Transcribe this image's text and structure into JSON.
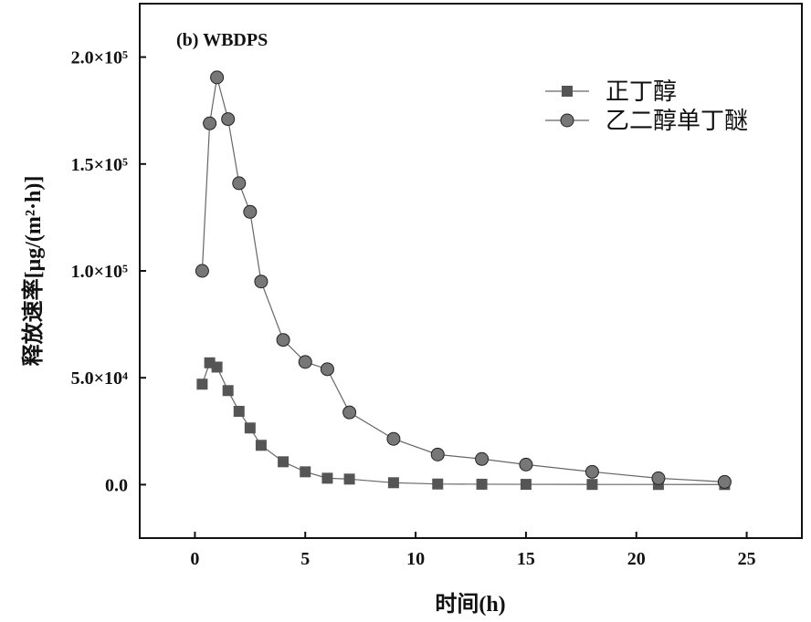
{
  "chart_data": {
    "type": "line",
    "title": "(b) WBDPS",
    "xlabel": "时间(h)",
    "ylabel": "释放速率[μg/(m²·h)]",
    "xlim": [
      -2.5,
      27.5
    ],
    "ylim": [
      -25000,
      225000
    ],
    "xticks": [
      0,
      5,
      10,
      15,
      20,
      25
    ],
    "xtick_labels": [
      "0",
      "5",
      "10",
      "15",
      "20",
      "25"
    ],
    "yticks": [
      0,
      50000,
      100000,
      150000,
      200000
    ],
    "ytick_labels": [
      "0.0",
      "5.0×10⁴",
      "1.0×10⁵",
      "1.5×10⁵",
      "2.0×10⁵"
    ],
    "grid": false,
    "legend_position": "top-right",
    "x": [
      0.33,
      0.67,
      1,
      1.5,
      2,
      2.5,
      3,
      4,
      5,
      6,
      7,
      9,
      11,
      13,
      15,
      18,
      21,
      24
    ],
    "series": [
      {
        "name": "正丁醇",
        "marker": "square",
        "color": "#555555",
        "values": [
          47000,
          57000,
          55000,
          44000,
          34300,
          26500,
          18400,
          10700,
          6000,
          3000,
          2600,
          900,
          300,
          200,
          150,
          100,
          80,
          50
        ]
      },
      {
        "name": "乙二醇单丁醚",
        "marker": "circle",
        "color": "#777777",
        "values": [
          100000,
          169000,
          190500,
          171000,
          141000,
          127600,
          95000,
          67700,
          57400,
          54000,
          33800,
          21400,
          14100,
          12000,
          9400,
          6000,
          3000,
          1300
        ]
      }
    ]
  }
}
